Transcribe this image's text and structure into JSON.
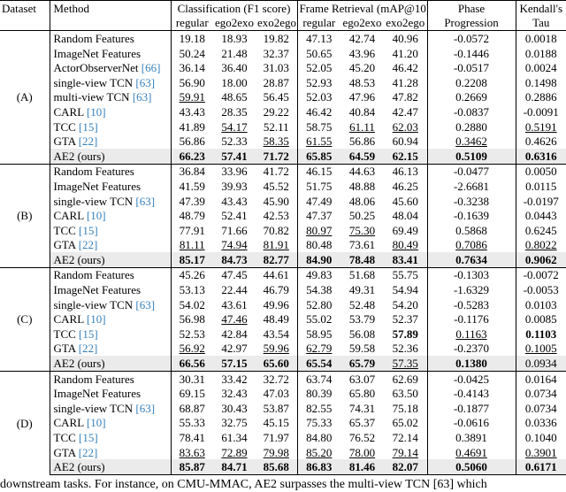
{
  "table": {
    "header": {
      "dataset": "Dataset",
      "method": "Method",
      "groups": [
        {
          "label": "Classification (F1 score)",
          "subs": [
            "regular",
            "ego2exo",
            "exo2ego"
          ]
        },
        {
          "label": "Frame Retrieval (mAP@10)",
          "subs": [
            "regular",
            "ego2exo",
            "exo2ego"
          ]
        }
      ],
      "phase": [
        "Phase",
        "Progression"
      ],
      "tau": [
        "Kendall's",
        "Tau"
      ]
    },
    "sections": [
      {
        "dataset": "(A)",
        "rows": [
          {
            "method": "Random Features",
            "values": [
              "19.18",
              "18.93",
              "19.82",
              "47.13",
              "42.74",
              "40.96",
              "-0.0572",
              "0.0018"
            ]
          },
          {
            "method": "ImageNet Features",
            "values": [
              "50.24",
              "21.48",
              "32.37",
              "50.65",
              "43.96",
              "41.20",
              "-0.1446",
              "0.0188"
            ]
          },
          {
            "method": "ActorObserverNet",
            "cite": "[66]",
            "values": [
              "36.14",
              "36.40",
              "31.03",
              "52.05",
              "45.20",
              "46.42",
              "-0.0517",
              "0.0024"
            ]
          },
          {
            "method": "single-view TCN",
            "cite": "[63]",
            "values": [
              "56.90",
              "18.00",
              "28.87",
              "52.93",
              "48.53",
              "41.28",
              "0.2208",
              "0.1498"
            ]
          },
          {
            "method": "multi-view TCN",
            "cite": "[63]",
            "values": [
              {
                "text": "59.91",
                "style": "underline"
              },
              "48.65",
              "56.45",
              "52.03",
              "47.96",
              "47.82",
              "0.2669",
              "0.2886"
            ]
          },
          {
            "method": "CARL",
            "cite": "[10]",
            "values": [
              "43.43",
              "28.35",
              "29.22",
              "46.42",
              "40.84",
              "42.47",
              "-0.0837",
              "-0.0091"
            ]
          },
          {
            "method": "TCC",
            "cite": "[15]",
            "values": [
              "41.89",
              {
                "text": "54.17",
                "style": "underline"
              },
              "52.11",
              "58.75",
              {
                "text": "61.11",
                "style": "underline"
              },
              {
                "text": "62.03",
                "style": "underline"
              },
              "0.2880",
              {
                "text": "0.5191",
                "style": "underline"
              }
            ]
          },
          {
            "method": "GTA",
            "cite": "[22]",
            "values": [
              "56.86",
              "52.33",
              {
                "text": "58.35",
                "style": "underline"
              },
              {
                "text": "61.55",
                "style": "underline"
              },
              "56.86",
              "60.94",
              {
                "text": "0.3462",
                "style": "underline"
              },
              "0.4626"
            ]
          },
          {
            "method": "AE2 (ours)",
            "highlight": true,
            "values": [
              {
                "text": "66.23",
                "style": "bold"
              },
              {
                "text": "57.41",
                "style": "bold"
              },
              {
                "text": "71.72",
                "style": "bold"
              },
              {
                "text": "65.85",
                "style": "bold"
              },
              {
                "text": "64.59",
                "style": "bold"
              },
              {
                "text": "62.15",
                "style": "bold"
              },
              {
                "text": "0.5109",
                "style": "bold"
              },
              {
                "text": "0.6316",
                "style": "bold"
              }
            ]
          }
        ]
      },
      {
        "dataset": "(B)",
        "rows": [
          {
            "method": "Random Features",
            "values": [
              "36.84",
              "33.96",
              "41.72",
              "46.15",
              "44.63",
              "46.13",
              "-0.0477",
              "0.0050"
            ]
          },
          {
            "method": "ImageNet Features",
            "values": [
              "41.59",
              "39.93",
              "45.52",
              "51.75",
              "48.88",
              "46.25",
              "-2.6681",
              "0.0115"
            ]
          },
          {
            "method": "single-view TCN",
            "cite": "[63]",
            "values": [
              "47.39",
              "43.43",
              "45.90",
              "47.49",
              "48.06",
              "45.60",
              "-0.3238",
              "-0.0197"
            ]
          },
          {
            "method": "CARL",
            "cite": "[10]",
            "values": [
              "48.79",
              "52.41",
              "42.53",
              "47.37",
              "50.25",
              "48.04",
              "-0.1639",
              "0.0443"
            ]
          },
          {
            "method": "TCC",
            "cite": "[15]",
            "values": [
              "77.91",
              "71.66",
              "70.82",
              {
                "text": "80.97",
                "style": "underline"
              },
              {
                "text": "75.30",
                "style": "underline"
              },
              "69.49",
              "0.5868",
              "0.6245"
            ]
          },
          {
            "method": "GTA",
            "cite": "[22]",
            "values": [
              {
                "text": "81.11",
                "style": "underline"
              },
              {
                "text": "74.94",
                "style": "underline"
              },
              {
                "text": "81.91",
                "style": "underline"
              },
              "80.48",
              "73.61",
              {
                "text": "80.49",
                "style": "underline"
              },
              {
                "text": "0.7086",
                "style": "underline"
              },
              {
                "text": "0.8022",
                "style": "underline"
              }
            ]
          },
          {
            "method": "AE2 (ours)",
            "highlight": true,
            "values": [
              {
                "text": "85.17",
                "style": "bold"
              },
              {
                "text": "84.73",
                "style": "bold"
              },
              {
                "text": "82.77",
                "style": "bold"
              },
              {
                "text": "84.90",
                "style": "bold"
              },
              {
                "text": "78.48",
                "style": "bold"
              },
              {
                "text": "83.41",
                "style": "bold"
              },
              {
                "text": "0.7634",
                "style": "bold"
              },
              {
                "text": "0.9062",
                "style": "bold"
              }
            ]
          }
        ]
      },
      {
        "dataset": "(C)",
        "rows": [
          {
            "method": "Random Features",
            "values": [
              "45.26",
              "47.45",
              "44.61",
              "49.83",
              "51.68",
              "55.75",
              "-0.1303",
              "-0.0072"
            ]
          },
          {
            "method": "ImageNet Features",
            "values": [
              "53.13",
              "22.44",
              "46.79",
              "54.38",
              "49.31",
              "54.94",
              "-1.6329",
              "-0.0053"
            ]
          },
          {
            "method": "single-view TCN",
            "cite": "[63]",
            "values": [
              "54.02",
              "43.61",
              "49.96",
              "52.80",
              "52.48",
              "54.20",
              "-0.5283",
              "0.0103"
            ]
          },
          {
            "method": "CARL",
            "cite": "[10]",
            "values": [
              "56.98",
              {
                "text": "47.46",
                "style": "underline"
              },
              "48.49",
              "55.02",
              "53.79",
              "52.37",
              "-0.1176",
              "0.0085"
            ]
          },
          {
            "method": "TCC",
            "cite": "[15]",
            "values": [
              "52.53",
              "42.84",
              "43.54",
              "58.95",
              "56.08",
              {
                "text": "57.89",
                "style": "bold"
              },
              {
                "text": "0.1163",
                "style": "underline"
              },
              {
                "text": "0.1103",
                "style": "bold"
              }
            ]
          },
          {
            "method": "GTA",
            "cite": "[22]",
            "values": [
              {
                "text": "56.92",
                "style": "underline"
              },
              "42.97",
              {
                "text": "59.96",
                "style": "underline"
              },
              {
                "text": "62.79",
                "style": "underline"
              },
              "59.58",
              "52.36",
              "-0.2370",
              {
                "text": "0.1005",
                "style": "underline"
              }
            ]
          },
          {
            "method": "AE2 (ours)",
            "highlight": true,
            "values": [
              {
                "text": "66.56",
                "style": "bold"
              },
              {
                "text": "57.15",
                "style": "bold"
              },
              {
                "text": "65.60",
                "style": "bold"
              },
              {
                "text": "65.54",
                "style": "bold"
              },
              {
                "text": "65.79",
                "style": "bold"
              },
              {
                "text": "57.35",
                "style": "underline"
              },
              {
                "text": "0.1380",
                "style": "bold"
              },
              "0.0934"
            ]
          }
        ]
      },
      {
        "dataset": "(D)",
        "rows": [
          {
            "method": "Random Features",
            "values": [
              "30.31",
              "33.42",
              "32.72",
              "63.74",
              "63.07",
              "62.69",
              "-0.0425",
              "0.0164"
            ]
          },
          {
            "method": "ImageNet Features",
            "values": [
              "69.15",
              "32.43",
              "47.03",
              "80.39",
              "65.80",
              "63.50",
              "-0.4143",
              "0.0734"
            ]
          },
          {
            "method": "single-view TCN",
            "cite": "[63]",
            "values": [
              "68.87",
              "30.43",
              "53.87",
              "82.55",
              "74.31",
              "75.18",
              "-0.1877",
              "0.0734"
            ]
          },
          {
            "method": "CARL",
            "cite": "[10]",
            "values": [
              "55.33",
              "32.75",
              "45.15",
              "75.33",
              "65.37",
              "65.02",
              "-0.0616",
              "0.0336"
            ]
          },
          {
            "method": "TCC",
            "cite": "[15]",
            "values": [
              "78.41",
              "61.34",
              "71.97",
              "84.80",
              "76.52",
              "72.14",
              "0.3891",
              "0.1040"
            ]
          },
          {
            "method": "GTA",
            "cite": "[22]",
            "values": [
              {
                "text": "83.63",
                "style": "underline"
              },
              {
                "text": "72.89",
                "style": "underline"
              },
              {
                "text": "79.98",
                "style": "underline"
              },
              {
                "text": "85.20",
                "style": "underline"
              },
              {
                "text": "78.00",
                "style": "underline"
              },
              {
                "text": "79.14",
                "style": "underline"
              },
              {
                "text": "0.4691",
                "style": "underline"
              },
              {
                "text": "0.3901",
                "style": "underline"
              }
            ]
          },
          {
            "method": "AE2 (ours)",
            "highlight": true,
            "values": [
              {
                "text": "85.87",
                "style": "bold"
              },
              {
                "text": "84.71",
                "style": "bold"
              },
              {
                "text": "85.68",
                "style": "bold"
              },
              {
                "text": "86.83",
                "style": "bold"
              },
              {
                "text": "81.46",
                "style": "bold"
              },
              {
                "text": "82.07",
                "style": "bold"
              },
              {
                "text": "0.5060",
                "style": "bold"
              },
              {
                "text": "0.6171",
                "style": "bold"
              }
            ]
          }
        ]
      }
    ]
  },
  "caption_fragment": "downstream tasks. For instance, on CMU-MMAC, AE2 surpasses the multi-view TCN [63] which"
}
